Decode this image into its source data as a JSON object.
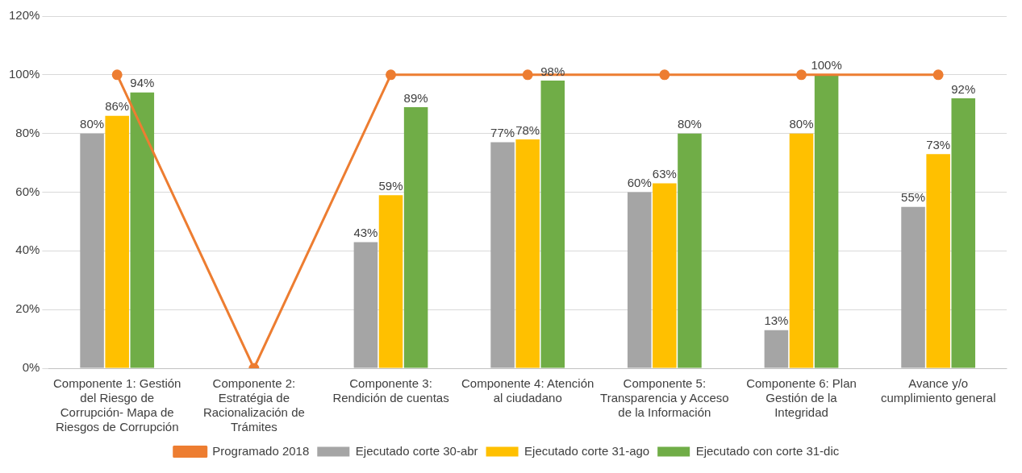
{
  "chart_data": {
    "type": "bar",
    "categories": [
      "Componente 1: Gestión del Riesgo de Corrupción- Mapa de Riesgos de Corrupción",
      "Componente 2: Estratégia de Racionalización de Trámites",
      "Componente 3: Rendición de cuentas",
      "Componente 4: Atención al ciudadano",
      "Componente 5: Transparencia y Acceso de la Información",
      "Componente 6: Plan Gestión de la Integridad",
      "Avance y/o cumplimiento general"
    ],
    "series": [
      {
        "name": "Ejecutado corte 30-abr",
        "color": "#a5a5a5",
        "values": [
          80,
          null,
          43,
          77,
          60,
          13,
          55
        ],
        "value_labels": [
          "80%",
          null,
          "43%",
          "77%",
          "60%",
          "13%",
          "55%"
        ]
      },
      {
        "name": "Ejecutado corte 31-ago",
        "color": "#ffc000",
        "values": [
          86,
          null,
          59,
          78,
          63,
          80,
          73
        ],
        "value_labels": [
          "86%",
          null,
          "59%",
          "78%",
          "63%",
          "80%",
          "73%"
        ]
      },
      {
        "name": "Ejecutado con corte 31-dic",
        "color": "#70ad47",
        "values": [
          94,
          null,
          89,
          98,
          80,
          100,
          92
        ],
        "value_labels": [
          "94%",
          null,
          "89%",
          "98%",
          "80%",
          "100%",
          "92%"
        ]
      },
      {
        "name": "Programado 2018",
        "type": "line",
        "color": "#ed7d31",
        "values": [
          100,
          0,
          100,
          100,
          100,
          100,
          100
        ],
        "marker": "circle"
      }
    ],
    "ylim": [
      0,
      120
    ],
    "yticks": [
      {
        "value": 0,
        "label": "0%"
      },
      {
        "value": 20,
        "label": "20%"
      },
      {
        "value": 40,
        "label": "40%"
      },
      {
        "value": 60,
        "label": "60%"
      },
      {
        "value": 80,
        "label": "80%"
      },
      {
        "value": 100,
        "label": "100%"
      },
      {
        "value": 120,
        "label": "120%"
      }
    ],
    "grid": "y",
    "legend": "bottom"
  }
}
